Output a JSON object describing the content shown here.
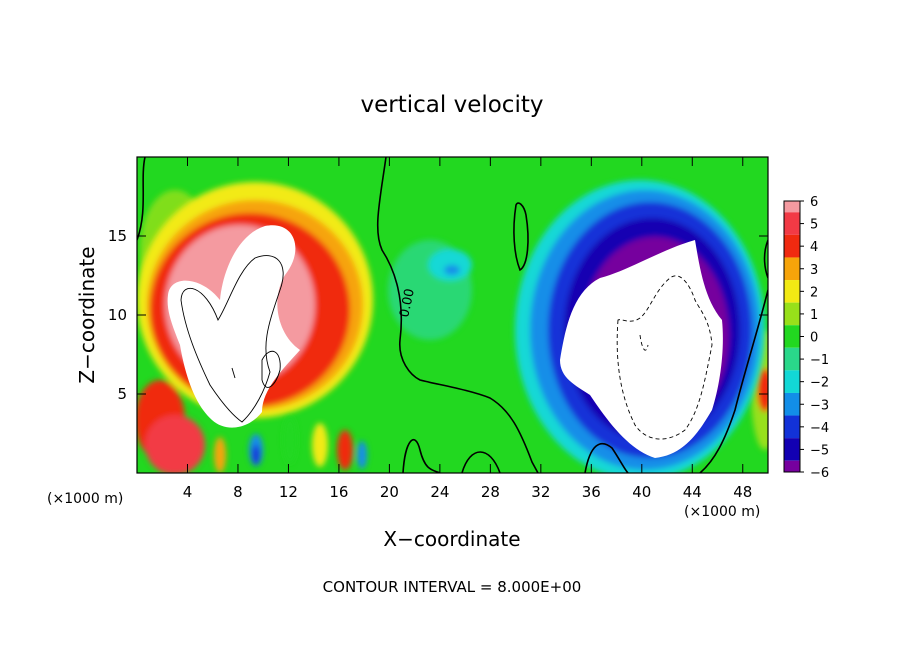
{
  "chart_data": {
    "type": "heatmap",
    "title": "vertical velocity",
    "xlabel": "X−coordinate",
    "ylabel": "Z−coordinate",
    "x_unit_label": "(×1000 m)",
    "z_unit_label": "(×1000 m)",
    "footer": "CONTOUR INTERVAL = 8.000E+00",
    "xlim": [
      0,
      50
    ],
    "ylim": [
      0,
      20
    ],
    "x_ticks": [
      4,
      8,
      12,
      16,
      20,
      24,
      28,
      32,
      36,
      40,
      44,
      48
    ],
    "x_tick_labels": [
      "4",
      "8",
      "12",
      "16",
      "20",
      "24",
      "28",
      "32",
      "36",
      "40",
      "44",
      "48"
    ],
    "y_ticks": [
      5,
      10,
      15
    ],
    "y_tick_labels": [
      "5",
      "10",
      "15"
    ],
    "colorbar": {
      "levels": [
        6,
        5,
        4,
        3,
        2,
        1,
        0,
        -1,
        -2,
        -3,
        -4,
        -5,
        -6
      ],
      "labels": [
        "6",
        "5",
        "4",
        "3",
        "2",
        "1",
        "0",
        "−1",
        "−2",
        "−3",
        "−4",
        "−5",
        "−6"
      ],
      "colors": [
        "#f49aa0",
        "#f23a45",
        "#f02a10",
        "#f6a40a",
        "#f2ea14",
        "#98e01a",
        "#22d820",
        "#2ad88a",
        "#12d8d6",
        "#128ee8",
        "#1232d8",
        "#1200b2",
        "#76009e"
      ],
      "position": "right"
    },
    "contour_label": "0.00",
    "features": [
      {
        "kind": "updraft",
        "x_center": 9.5,
        "z_center": 10,
        "peak": 6,
        "above_scale": true
      },
      {
        "kind": "downdraft",
        "x_center": 41,
        "z_center": 9,
        "peak": -6,
        "below_scale": true
      },
      {
        "kind": "weak_downdraft",
        "x_center": 24.7,
        "z_center": 12.6,
        "peak": -2.5
      }
    ]
  }
}
